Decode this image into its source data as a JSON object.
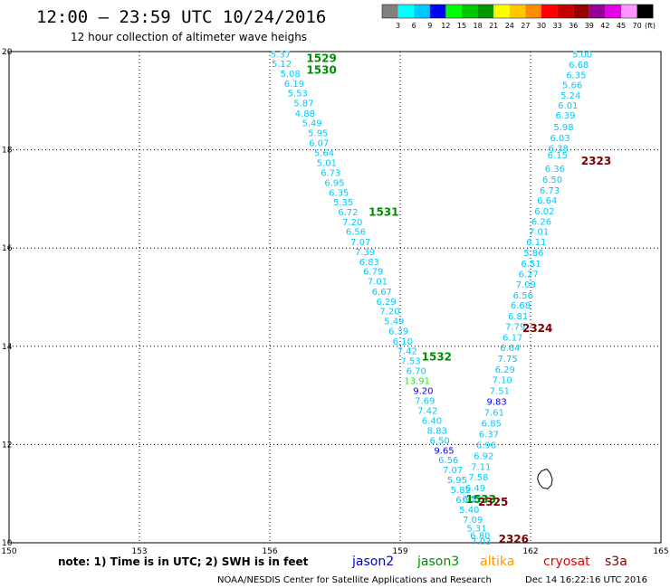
{
  "header": {
    "title": "12:00 – 23:59 UTC 10/24/2016",
    "subtitle": "12 hour collection of altimeter wave heighs"
  },
  "colorbar": {
    "labels": [
      "3",
      "6",
      "9",
      "12",
      "15",
      "18",
      "21",
      "24",
      "27",
      "30",
      "33",
      "36",
      "39",
      "42",
      "45",
      "70"
    ],
    "unit": "(ft)",
    "colors": [
      "#808080",
      "#00ffff",
      "#00c8ff",
      "#0000ff",
      "#00ff00",
      "#00c800",
      "#009600",
      "#ffff00",
      "#ffc800",
      "#ff8c00",
      "#ff0000",
      "#c80000",
      "#960000",
      "#960096",
      "#e600e6",
      "#ff96ff",
      "#000000"
    ]
  },
  "footer": {
    "note": "note: 1) Time is in UTC; 2) SWH is in feet",
    "satellites": [
      {
        "name": "jason2",
        "color": "#0000cc"
      },
      {
        "name": "jason3",
        "color": "#008c00"
      },
      {
        "name": "altika",
        "color": "#ff9900"
      },
      {
        "name": "cryosat",
        "color": "#e60000"
      },
      {
        "name": "s3a",
        "color": "#7a0000"
      }
    ],
    "credit": "NOAA/NESDIS Center for Satellite Applications and Research",
    "timestamp": "Dec 14 16:22:16 UTC 2016"
  },
  "chart_data": {
    "type": "scatter",
    "title": "12:00 – 23:59 UTC 10/24/2016",
    "subtitle": "12 hour collection of altimeter wave heighs",
    "xlabel": "",
    "ylabel": "",
    "xlim": [
      150,
      165
    ],
    "ylim": [
      10,
      20
    ],
    "xticks": [
      150,
      153,
      156,
      159,
      162,
      165
    ],
    "yticks": [
      10,
      12,
      14,
      16,
      18,
      20
    ],
    "grid": true,
    "series": [
      {
        "name": "jason3",
        "color": "#008c00",
        "points": [
          {
            "x": 156.25,
            "y": 19.95,
            "v": "5.37",
            "c": "#00c8ff"
          },
          {
            "x": 156.27,
            "y": 19.76,
            "v": "5.12",
            "c": "#00c8ff"
          },
          {
            "x": 156.47,
            "y": 19.56,
            "v": "5.08",
            "c": "#00c8ff"
          },
          {
            "x": 156.56,
            "y": 19.36,
            "v": "6.19",
            "c": "#00c8ff"
          },
          {
            "x": 156.64,
            "y": 19.16,
            "v": "5.53",
            "c": "#00c8ff"
          },
          {
            "x": 156.78,
            "y": 18.96,
            "v": "5.87",
            "c": "#00c8ff"
          },
          {
            "x": 156.81,
            "y": 18.75,
            "v": "4.88",
            "c": "#00c8ff"
          },
          {
            "x": 156.97,
            "y": 18.55,
            "v": "5.49",
            "c": "#00c8ff"
          },
          {
            "x": 157.11,
            "y": 18.35,
            "v": "5.95",
            "c": "#00c8ff"
          },
          {
            "x": 157.13,
            "y": 18.15,
            "v": "6.07",
            "c": "#00c8ff"
          },
          {
            "x": 157.25,
            "y": 17.95,
            "v": "5.64",
            "c": "#00c8ff"
          },
          {
            "x": 157.31,
            "y": 17.74,
            "v": "5.01",
            "c": "#00c8ff"
          },
          {
            "x": 157.4,
            "y": 17.54,
            "v": "6.73",
            "c": "#00c8ff"
          },
          {
            "x": 157.49,
            "y": 17.34,
            "v": "6.95",
            "c": "#00c8ff"
          },
          {
            "x": 157.59,
            "y": 17.14,
            "v": "6.35",
            "c": "#00c8ff"
          },
          {
            "x": 157.69,
            "y": 16.94,
            "v": "5.35",
            "c": "#00c8ff"
          },
          {
            "x": 157.8,
            "y": 16.74,
            "v": "6.72",
            "c": "#00c8ff"
          },
          {
            "x": 157.9,
            "y": 16.54,
            "v": "7.20",
            "c": "#00c8ff"
          },
          {
            "x": 157.98,
            "y": 16.34,
            "v": "6.56",
            "c": "#00c8ff"
          },
          {
            "x": 158.09,
            "y": 16.13,
            "v": "7.07",
            "c": "#00c8ff"
          },
          {
            "x": 158.19,
            "y": 15.93,
            "v": "7.39",
            "c": "#00c8ff"
          },
          {
            "x": 158.29,
            "y": 15.73,
            "v": "6.83",
            "c": "#00c8ff"
          },
          {
            "x": 158.38,
            "y": 15.53,
            "v": "6.79",
            "c": "#00c8ff"
          },
          {
            "x": 158.48,
            "y": 15.33,
            "v": "7.01",
            "c": "#00c8ff"
          },
          {
            "x": 158.58,
            "y": 15.12,
            "v": "6.67",
            "c": "#00c8ff"
          },
          {
            "x": 158.68,
            "y": 14.92,
            "v": "6.29",
            "c": "#00c8ff"
          },
          {
            "x": 158.76,
            "y": 14.72,
            "v": "7.20",
            "c": "#00c8ff"
          },
          {
            "x": 158.86,
            "y": 14.52,
            "v": "5.49",
            "c": "#00c8ff"
          },
          {
            "x": 158.96,
            "y": 14.32,
            "v": "6.39",
            "c": "#00c8ff"
          },
          {
            "x": 159.06,
            "y": 14.11,
            "v": "6.10",
            "c": "#00c8ff"
          },
          {
            "x": 159.16,
            "y": 13.91,
            "v": "7.42",
            "c": "#00c8ff"
          },
          {
            "x": 159.24,
            "y": 13.71,
            "v": "7.53",
            "c": "#00c8ff"
          },
          {
            "x": 159.37,
            "y": 13.51,
            "v": "6.70",
            "c": "#00c8ff"
          },
          {
            "x": 159.39,
            "y": 13.31,
            "v": "13.91",
            "c": "#00ff00"
          },
          {
            "x": 159.53,
            "y": 13.1,
            "v": "9.20",
            "c": "#0000ff"
          },
          {
            "x": 159.57,
            "y": 12.9,
            "v": "7.69",
            "c": "#00c8ff"
          },
          {
            "x": 159.63,
            "y": 12.7,
            "v": "7.42",
            "c": "#00c8ff"
          },
          {
            "x": 159.73,
            "y": 12.5,
            "v": "6.40",
            "c": "#00c8ff"
          },
          {
            "x": 159.85,
            "y": 12.29,
            "v": "8.83",
            "c": "#00c8ff"
          },
          {
            "x": 159.91,
            "y": 12.09,
            "v": "6.50",
            "c": "#00c8ff"
          },
          {
            "x": 160.01,
            "y": 11.89,
            "v": "9.65",
            "c": "#0000ff"
          },
          {
            "x": 160.11,
            "y": 11.69,
            "v": "6.56",
            "c": "#00c8ff"
          },
          {
            "x": 160.21,
            "y": 11.49,
            "v": "7.07",
            "c": "#00c8ff"
          },
          {
            "x": 160.31,
            "y": 11.29,
            "v": "5.95",
            "c": "#00c8ff"
          },
          {
            "x": 160.39,
            "y": 11.09,
            "v": "5.82",
            "c": "#00c8ff"
          },
          {
            "x": 160.51,
            "y": 10.88,
            "v": "6.37",
            "c": "#00c8ff"
          },
          {
            "x": 160.59,
            "y": 10.68,
            "v": "5.40",
            "c": "#00c8ff"
          },
          {
            "x": 160.67,
            "y": 10.48,
            "v": "7.09",
            "c": "#00c8ff"
          },
          {
            "x": 160.76,
            "y": 10.3,
            "v": "5.31",
            "c": "#00c8ff"
          },
          {
            "x": 160.84,
            "y": 10.16,
            "v": "6.80",
            "c": "#00c8ff"
          },
          {
            "x": 160.86,
            "y": 10.04,
            "v": "7.03",
            "c": "#00c8ff"
          }
        ]
      },
      {
        "name": "jason3",
        "color": "#008c00",
        "points": [
          {
            "x": 163.19,
            "y": 19.95,
            "v": "5.00",
            "c": "#00c8ff"
          },
          {
            "x": 163.11,
            "y": 19.74,
            "v": "6.68",
            "c": "#00c8ff"
          },
          {
            "x": 163.05,
            "y": 19.53,
            "v": "6.35",
            "c": "#00c8ff"
          },
          {
            "x": 162.96,
            "y": 19.33,
            "v": "5.66",
            "c": "#00c8ff"
          },
          {
            "x": 162.92,
            "y": 19.12,
            "v": "5.24",
            "c": "#00c8ff"
          },
          {
            "x": 162.86,
            "y": 18.91,
            "v": "6.01",
            "c": "#00c8ff"
          },
          {
            "x": 162.8,
            "y": 18.71,
            "v": "6.39",
            "c": "#00c8ff"
          },
          {
            "x": 162.76,
            "y": 18.47,
            "v": "5.98",
            "c": "#00c8ff"
          },
          {
            "x": 162.68,
            "y": 18.25,
            "v": "6.03",
            "c": "#00c8ff"
          },
          {
            "x": 162.64,
            "y": 18.04,
            "v": "6.38",
            "c": "#00c8ff"
          },
          {
            "x": 162.62,
            "y": 17.9,
            "v": "6.15",
            "c": "#00c8ff"
          },
          {
            "x": 162.56,
            "y": 17.62,
            "v": "6.36",
            "c": "#00c8ff"
          },
          {
            "x": 162.5,
            "y": 17.4,
            "v": "6.50",
            "c": "#00c8ff"
          },
          {
            "x": 162.44,
            "y": 17.18,
            "v": "6.73",
            "c": "#00c8ff"
          },
          {
            "x": 162.38,
            "y": 16.98,
            "v": "6.64",
            "c": "#00c8ff"
          },
          {
            "x": 162.32,
            "y": 16.76,
            "v": "6.02",
            "c": "#00c8ff"
          },
          {
            "x": 162.25,
            "y": 16.55,
            "v": "6.26",
            "c": "#00c8ff"
          },
          {
            "x": 162.19,
            "y": 16.34,
            "v": "7.01",
            "c": "#00c8ff"
          },
          {
            "x": 162.13,
            "y": 16.13,
            "v": "6.11",
            "c": "#00c8ff"
          },
          {
            "x": 162.07,
            "y": 15.91,
            "v": "5.86",
            "c": "#00c8ff"
          },
          {
            "x": 162.01,
            "y": 15.69,
            "v": "6.51",
            "c": "#00c8ff"
          },
          {
            "x": 161.95,
            "y": 15.48,
            "v": "6.27",
            "c": "#00c8ff"
          },
          {
            "x": 161.89,
            "y": 15.27,
            "v": "7.09",
            "c": "#00c8ff"
          },
          {
            "x": 161.83,
            "y": 15.05,
            "v": "6.56",
            "c": "#00c8ff"
          },
          {
            "x": 161.77,
            "y": 14.84,
            "v": "6.68",
            "c": "#00c8ff"
          },
          {
            "x": 161.71,
            "y": 14.62,
            "v": "6.81",
            "c": "#00c8ff"
          },
          {
            "x": 161.65,
            "y": 14.41,
            "v": "7.79",
            "c": "#00c8ff"
          },
          {
            "x": 161.59,
            "y": 14.19,
            "v": "6.17",
            "c": "#00c8ff"
          },
          {
            "x": 161.53,
            "y": 13.98,
            "v": "6.64",
            "c": "#00c8ff"
          },
          {
            "x": 161.47,
            "y": 13.76,
            "v": "7.75",
            "c": "#00c8ff"
          },
          {
            "x": 161.41,
            "y": 13.54,
            "v": "6.29",
            "c": "#00c8ff"
          },
          {
            "x": 161.35,
            "y": 13.32,
            "v": "7.10",
            "c": "#00c8ff"
          },
          {
            "x": 161.29,
            "y": 13.1,
            "v": "7.51",
            "c": "#00c8ff"
          },
          {
            "x": 161.22,
            "y": 12.88,
            "v": "9.83",
            "c": "#0000ff"
          },
          {
            "x": 161.16,
            "y": 12.66,
            "v": "7.61",
            "c": "#00c8ff"
          },
          {
            "x": 161.1,
            "y": 12.44,
            "v": "6.85",
            "c": "#00c8ff"
          },
          {
            "x": 161.04,
            "y": 12.22,
            "v": "6.37",
            "c": "#00c8ff"
          },
          {
            "x": 160.98,
            "y": 12.0,
            "v": "6.96",
            "c": "#00c8ff"
          },
          {
            "x": 160.92,
            "y": 11.78,
            "v": "6.92",
            "c": "#00c8ff"
          },
          {
            "x": 160.86,
            "y": 11.56,
            "v": "7.11",
            "c": "#00c8ff"
          },
          {
            "x": 160.8,
            "y": 11.34,
            "v": "7.58",
            "c": "#00c8ff"
          },
          {
            "x": 160.73,
            "y": 11.12,
            "v": "6.49",
            "c": "#00c8ff"
          },
          {
            "x": 160.66,
            "y": 10.9,
            "v": "6.52",
            "c": "#00c8ff"
          }
        ]
      }
    ],
    "pass_labels": [
      {
        "text": "1529",
        "x": 157.19,
        "y": 19.88,
        "color": "#008c00"
      },
      {
        "text": "1530",
        "x": 157.19,
        "y": 19.64,
        "color": "#008c00"
      },
      {
        "text": "1531",
        "x": 158.62,
        "y": 16.75,
        "color": "#008c00"
      },
      {
        "text": "1532",
        "x": 159.84,
        "y": 13.8,
        "color": "#008c00"
      },
      {
        "text": "1533",
        "x": 160.86,
        "y": 10.9,
        "color": "#008c00"
      },
      {
        "text": "2323",
        "x": 163.51,
        "y": 17.79,
        "color": "#7a0000"
      },
      {
        "text": "2324",
        "x": 162.16,
        "y": 14.38,
        "color": "#7a0000"
      },
      {
        "text": "2325",
        "x": 161.14,
        "y": 10.85,
        "color": "#7a0000"
      },
      {
        "text": "2326",
        "x": 161.61,
        "y": 10.09,
        "color": "#7a0000"
      }
    ],
    "coastline": [
      [
        162.18,
        11.38
      ],
      [
        162.25,
        11.46
      ],
      [
        162.37,
        11.5
      ],
      [
        162.45,
        11.42
      ],
      [
        162.5,
        11.3
      ],
      [
        162.48,
        11.18
      ],
      [
        162.4,
        11.1
      ],
      [
        162.28,
        11.12
      ],
      [
        162.2,
        11.2
      ],
      [
        162.16,
        11.3
      ],
      [
        162.18,
        11.38
      ]
    ]
  }
}
